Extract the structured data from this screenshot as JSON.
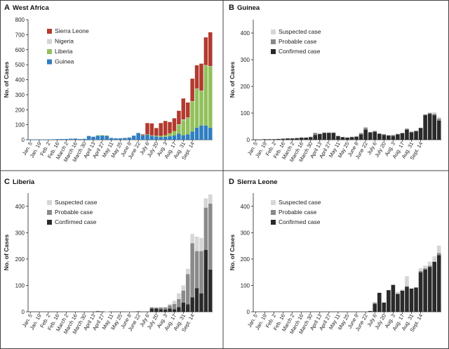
{
  "colors": {
    "sierra_leone": "#b23a2e",
    "nigeria": "#d4d4d4",
    "liberia": "#92c05c",
    "guinea": "#2f7ec1",
    "suspected": "#d6d6d6",
    "probable": "#8a8a8a",
    "confirmed": "#2a2a2a"
  },
  "chart_data": [
    {
      "panel": "A",
      "title": "West Africa",
      "type": "bar",
      "stacked": true,
      "ylabel": "No. of Cases",
      "ylim": [
        0,
        800
      ],
      "yticks": [
        0,
        100,
        200,
        300,
        400,
        500,
        600,
        700,
        800
      ],
      "xticks": [
        "Jan. 5",
        "Jan. 19",
        "Feb. 2",
        "Feb. 16",
        "March 2",
        "March 16",
        "March 30",
        "April 13",
        "April 27",
        "May 11",
        "May 25",
        "June 8",
        "June 22",
        "July 6",
        "July 20",
        "Aug. 3",
        "Aug. 17",
        "Aug. 31",
        "Sept. 14"
      ],
      "legend": [
        "Sierra Leone",
        "Nigeria",
        "Liberia",
        "Guinea"
      ],
      "series": [
        {
          "name": "Guinea",
          "color_key": "guinea",
          "values": [
            1,
            1,
            2,
            2,
            2,
            3,
            4,
            5,
            5,
            7,
            8,
            5,
            6,
            25,
            20,
            26,
            28,
            27,
            12,
            10,
            10,
            12,
            15,
            27,
            45,
            30,
            34,
            25,
            22,
            18,
            20,
            23,
            28,
            40,
            30,
            35,
            55,
            80,
            95,
            95,
            80
          ]
        },
        {
          "name": "Liberia",
          "color_key": "liberia",
          "values": [
            0,
            0,
            0,
            0,
            0,
            0,
            0,
            0,
            0,
            0,
            0,
            0,
            0,
            0,
            0,
            4,
            2,
            1,
            0,
            0,
            0,
            0,
            0,
            0,
            0,
            1,
            2,
            4,
            6,
            8,
            10,
            20,
            30,
            60,
            100,
            110,
            200,
            260,
            230,
            400,
            410
          ]
        },
        {
          "name": "Nigeria",
          "color_key": "nigeria",
          "values": [
            0,
            0,
            0,
            0,
            0,
            0,
            0,
            0,
            0,
            0,
            0,
            0,
            0,
            0,
            0,
            0,
            0,
            0,
            0,
            0,
            0,
            0,
            0,
            0,
            0,
            0,
            0,
            0,
            0,
            0,
            0,
            0,
            0,
            3,
            5,
            3,
            2,
            1,
            2,
            2,
            1
          ]
        },
        {
          "name": "Sierra Leone",
          "color_key": "sierra_leone",
          "values": [
            0,
            0,
            0,
            0,
            0,
            0,
            0,
            0,
            0,
            0,
            0,
            0,
            0,
            0,
            0,
            0,
            0,
            0,
            0,
            0,
            0,
            0,
            0,
            0,
            0,
            5,
            75,
            80,
            50,
            85,
            95,
            75,
            85,
            90,
            140,
            100,
            150,
            155,
            180,
            185,
            225
          ]
        }
      ]
    },
    {
      "panel": "B",
      "title": "Guinea",
      "type": "bar",
      "stacked": true,
      "ylabel": "No. of Cases",
      "ylim": [
        0,
        450
      ],
      "yticks": [
        0,
        100,
        200,
        300,
        400
      ],
      "xticks": [
        "Jan. 5",
        "Jan. 19",
        "Feb. 2",
        "Feb. 16",
        "March 2",
        "March 16",
        "March 30",
        "April 13",
        "April 27",
        "May 11",
        "May 25",
        "June 8",
        "June 22",
        "July 6",
        "July 20",
        "Aug. 3",
        "Aug. 17",
        "Aug. 31",
        "Sept. 14"
      ],
      "legend": [
        "Suspected case",
        "Probable case",
        "Confirmed case"
      ],
      "series": [
        {
          "name": "Confirmed case",
          "color_key": "confirmed",
          "values": [
            1,
            1,
            2,
            2,
            2,
            3,
            4,
            5,
            5,
            6,
            8,
            8,
            10,
            18,
            22,
            25,
            26,
            26,
            14,
            10,
            8,
            10,
            11,
            20,
            38,
            28,
            30,
            22,
            18,
            16,
            14,
            20,
            24,
            38,
            28,
            32,
            44,
            92,
            97,
            92,
            72
          ]
        },
        {
          "name": "Probable case",
          "color_key": "probable",
          "values": [
            0,
            0,
            0,
            0,
            0,
            0,
            0,
            0,
            0,
            1,
            0,
            0,
            1,
            8,
            0,
            2,
            1,
            1,
            0,
            0,
            0,
            1,
            2,
            5,
            8,
            0,
            3,
            2,
            3,
            1,
            4,
            2,
            2,
            3,
            2,
            2,
            1,
            3,
            3,
            5,
            7
          ]
        },
        {
          "name": "Suspected case",
          "color_key": "suspected",
          "values": [
            0,
            0,
            0,
            0,
            0,
            0,
            0,
            0,
            0,
            0,
            0,
            0,
            0,
            0,
            0,
            0,
            0,
            0,
            0,
            0,
            0,
            0,
            0,
            0,
            0,
            0,
            0,
            0,
            0,
            0,
            0,
            0,
            0,
            3,
            0,
            1,
            0,
            1,
            3,
            6,
            6
          ]
        }
      ]
    },
    {
      "panel": "C",
      "title": "Liberia",
      "type": "bar",
      "stacked": true,
      "ylabel": "No. of Cases",
      "ylim": [
        0,
        450
      ],
      "yticks": [
        0,
        100,
        200,
        300,
        400
      ],
      "xticks": [
        "Jan. 5",
        "Jan. 19",
        "Feb. 2",
        "Feb. 16",
        "March 2",
        "March 16",
        "March 30",
        "April 13",
        "April 27",
        "May 11",
        "May 25",
        "June 8",
        "June 22",
        "July 6",
        "July 20",
        "Aug. 3",
        "Aug. 17",
        "Aug. 31",
        "Sept. 14"
      ],
      "legend": [
        "Suspected case",
        "Probable case",
        "Confirmed case"
      ],
      "series": [
        {
          "name": "Confirmed case",
          "color_key": "confirmed",
          "values": [
            0,
            0,
            0,
            0,
            0,
            0,
            0,
            0,
            0,
            0,
            0,
            0,
            0,
            0,
            0,
            2,
            1,
            0,
            0,
            0,
            0,
            0,
            0,
            0,
            0,
            0,
            0,
            12,
            12,
            10,
            8,
            12,
            10,
            18,
            35,
            28,
            55,
            90,
            70,
            235,
            160
          ]
        },
        {
          "name": "Probable case",
          "color_key": "probable",
          "values": [
            0,
            0,
            0,
            0,
            0,
            0,
            0,
            0,
            0,
            0,
            0,
            0,
            0,
            0,
            0,
            1,
            0,
            0,
            0,
            0,
            0,
            0,
            1,
            0,
            3,
            0,
            0,
            5,
            4,
            6,
            8,
            12,
            20,
            30,
            45,
            115,
            205,
            140,
            160,
            160,
            250
          ]
        },
        {
          "name": "Suspected case",
          "color_key": "suspected",
          "values": [
            0,
            0,
            0,
            0,
            0,
            0,
            0,
            0,
            0,
            0,
            0,
            0,
            0,
            0,
            0,
            1,
            0,
            1,
            0,
            0,
            0,
            0,
            0,
            0,
            0,
            0,
            0,
            0,
            1,
            2,
            2,
            6,
            12,
            22,
            20,
            20,
            35,
            55,
            50,
            35,
            35
          ]
        }
      ]
    },
    {
      "panel": "D",
      "title": "Sierra Leone",
      "type": "bar",
      "stacked": true,
      "ylabel": "No. of Cases",
      "ylim": [
        0,
        450
      ],
      "yticks": [
        0,
        100,
        200,
        300,
        400
      ],
      "xticks": [
        "Jan. 5",
        "Jan. 19",
        "Feb. 2",
        "Feb. 16",
        "March 2",
        "March 16",
        "March 30",
        "April 13",
        "April 27",
        "May 11",
        "May 25",
        "June 8",
        "June 22",
        "July 6",
        "July 20",
        "Aug. 3",
        "Aug. 17",
        "Aug. 31",
        "Sept. 14"
      ],
      "legend": [
        "Suspected case",
        "Probable case",
        "Confirmed case"
      ],
      "series": [
        {
          "name": "Confirmed case",
          "color_key": "confirmed",
          "values": [
            0,
            0,
            0,
            0,
            0,
            0,
            0,
            0,
            0,
            0,
            0,
            0,
            0,
            0,
            0,
            0,
            0,
            0,
            0,
            0,
            0,
            0,
            0,
            0,
            0,
            3,
            30,
            72,
            35,
            82,
            102,
            68,
            80,
            95,
            88,
            92,
            150,
            160,
            170,
            190,
            215
          ]
        },
        {
          "name": "Probable case",
          "color_key": "probable",
          "values": [
            0,
            0,
            0,
            0,
            0,
            0,
            0,
            0,
            0,
            0,
            0,
            0,
            0,
            0,
            0,
            0,
            0,
            0,
            0,
            0,
            0,
            0,
            0,
            0,
            0,
            0,
            5,
            0,
            0,
            0,
            0,
            0,
            0,
            2,
            0,
            0,
            5,
            5,
            5,
            0,
            8
          ]
        },
        {
          "name": "Suspected case",
          "color_key": "suspected",
          "values": [
            0,
            0,
            0,
            0,
            0,
            0,
            0,
            0,
            0,
            0,
            0,
            0,
            0,
            0,
            0,
            0,
            0,
            0,
            0,
            0,
            0,
            0,
            0,
            0,
            0,
            0,
            0,
            0,
            0,
            0,
            0,
            8,
            5,
            38,
            0,
            0,
            10,
            10,
            15,
            20,
            28
          ]
        }
      ]
    }
  ]
}
